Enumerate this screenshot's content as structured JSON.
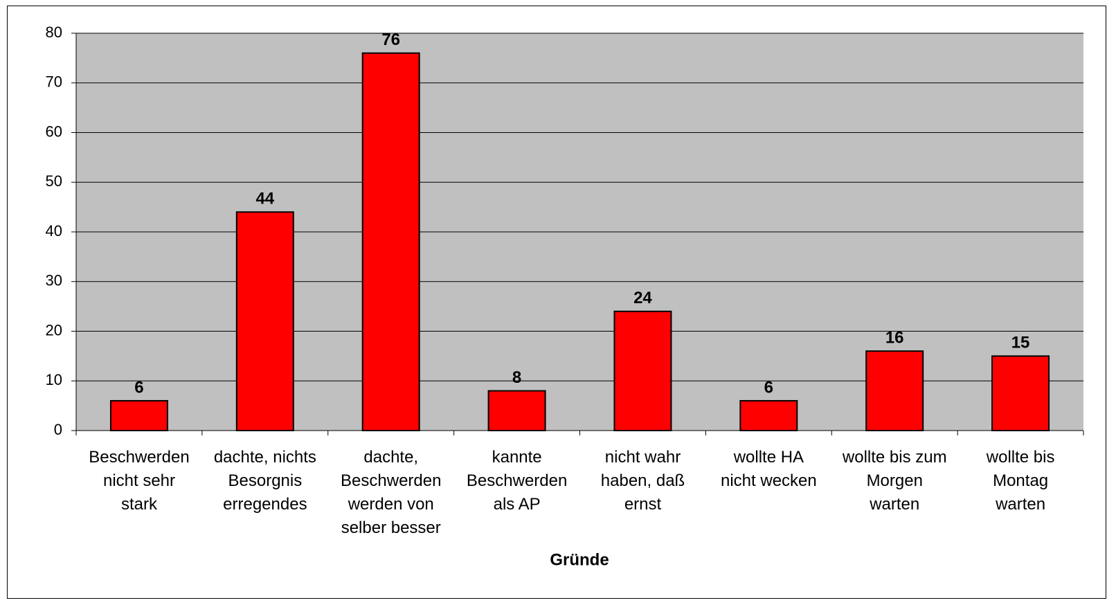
{
  "chart_data": {
    "type": "bar",
    "x_label": "Gründe",
    "categories": [
      "Beschwerden\nnicht sehr\nstark",
      "dachte, nichts\nBesorgnis\nerregendes",
      "dachte,\nBeschwerden\nwerden von\nselber besser",
      "kannte\nBeschwerden\nals AP",
      "nicht wahr\nhaben, daß\nernst",
      "wollte HA\nnicht wecken",
      "wollte bis zum\nMorgen\nwarten",
      "wollte bis\nMontag\nwarten"
    ],
    "values": [
      6,
      44,
      76,
      8,
      24,
      6,
      16,
      15
    ],
    "color": "#ff0000",
    "ylim": [
      0,
      80
    ],
    "yticks": [
      0,
      10,
      20,
      30,
      40,
      50,
      60,
      70,
      80
    ],
    "grid": true
  }
}
